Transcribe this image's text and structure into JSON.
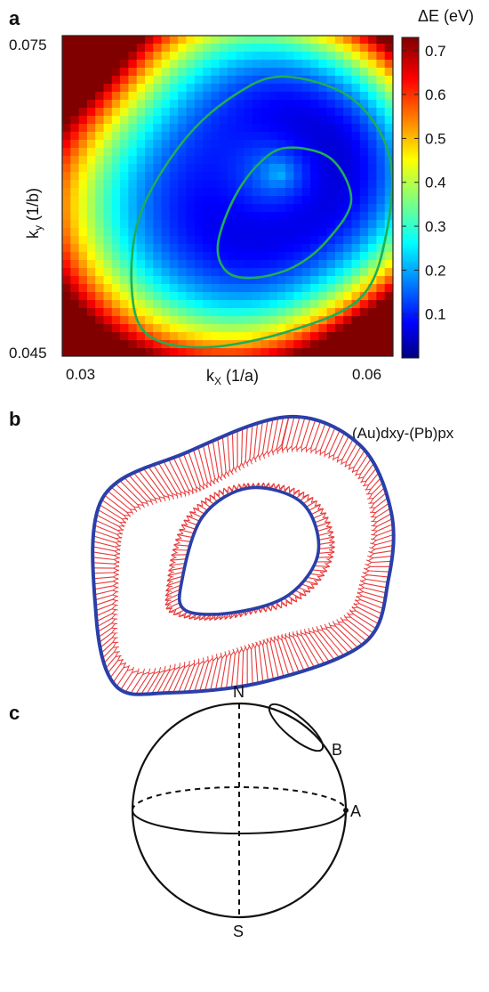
{
  "panels": {
    "a": "a",
    "b": "b",
    "c": "c"
  },
  "chart_data": [
    {
      "type": "heatmap",
      "xlabel": "k",
      "xlabel_sub": "X",
      "xlabel_unit": " (1/a)",
      "ylabel": "k",
      "ylabel_sub": "y",
      "ylabel_unit": " (1/b)",
      "colorbar_title": "ΔE (eV)",
      "xlim": [
        0.027,
        0.063
      ],
      "ylim": [
        0.045,
        0.075
      ],
      "x_ticks": [
        0.03,
        0.06
      ],
      "x_tick_labels": [
        "0.03",
        "0.06"
      ],
      "y_ticks": [
        0.045,
        0.075
      ],
      "y_tick_labels": [
        "0.045",
        "0.075"
      ],
      "colorbar_range": [
        0,
        0.73
      ],
      "colorbar_ticks": [
        0.1,
        0.2,
        0.3,
        0.4,
        0.5,
        0.6,
        0.7
      ],
      "colorbar_tick_labels": [
        "0.1",
        "0.2",
        "0.3",
        "0.4",
        "0.5",
        "0.6",
        "0.7"
      ],
      "colormap": "jet",
      "contour_color": "#1fae58",
      "grid": false
    },
    {
      "type": "vector-field",
      "annotation": "(Au)dxy-(Pb)px",
      "contour_color": "#2b3fa8",
      "arrow_color": "#e8393a"
    }
  ],
  "sphere": {
    "labels": {
      "north": "N",
      "south": "S",
      "a": "A",
      "b": "B"
    }
  }
}
